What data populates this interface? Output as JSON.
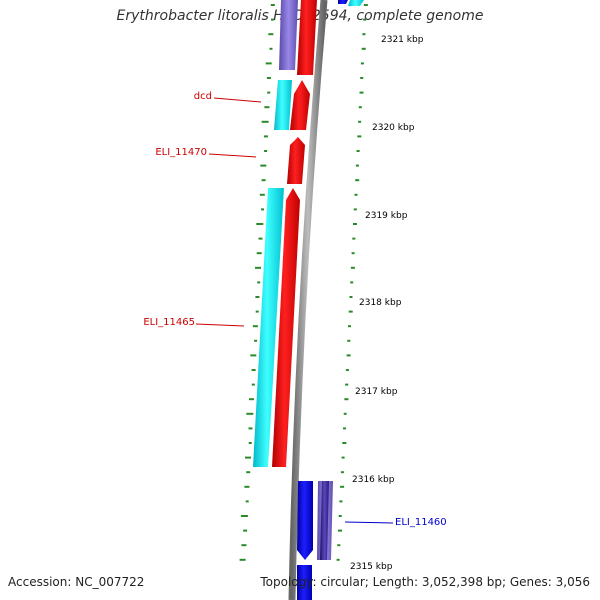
{
  "title": "Erythrobacter litoralis HTCC2594, complete genome",
  "accession": "Accession: NC_007722",
  "summary": "Topology: circular; Length: 3,052,398 bp; Genes: 3,056",
  "ticks": [
    "2321 kbp",
    "2320 kbp",
    "2319 kbp",
    "2318 kbp",
    "2317 kbp",
    "2316 kbp",
    "2315 kbp"
  ],
  "genes": [
    {
      "name": "dcd",
      "color": "#cc0000"
    },
    {
      "name": "ELI_11470",
      "color": "#cc0000"
    },
    {
      "name": "ELI_11465",
      "color": "#cc0000"
    },
    {
      "name": "ELI_11460",
      "color": "#0000cc"
    }
  ],
  "colors": {
    "forward_cds": "#ff0000",
    "reverse_cds": "#0000ee",
    "cog_cyan": "#00e5ee",
    "cog_purple": "#7b68c8",
    "cog_navy": "#3a2a90",
    "backbone": "#888888",
    "gc_ticks": "#2a8a2a"
  }
}
